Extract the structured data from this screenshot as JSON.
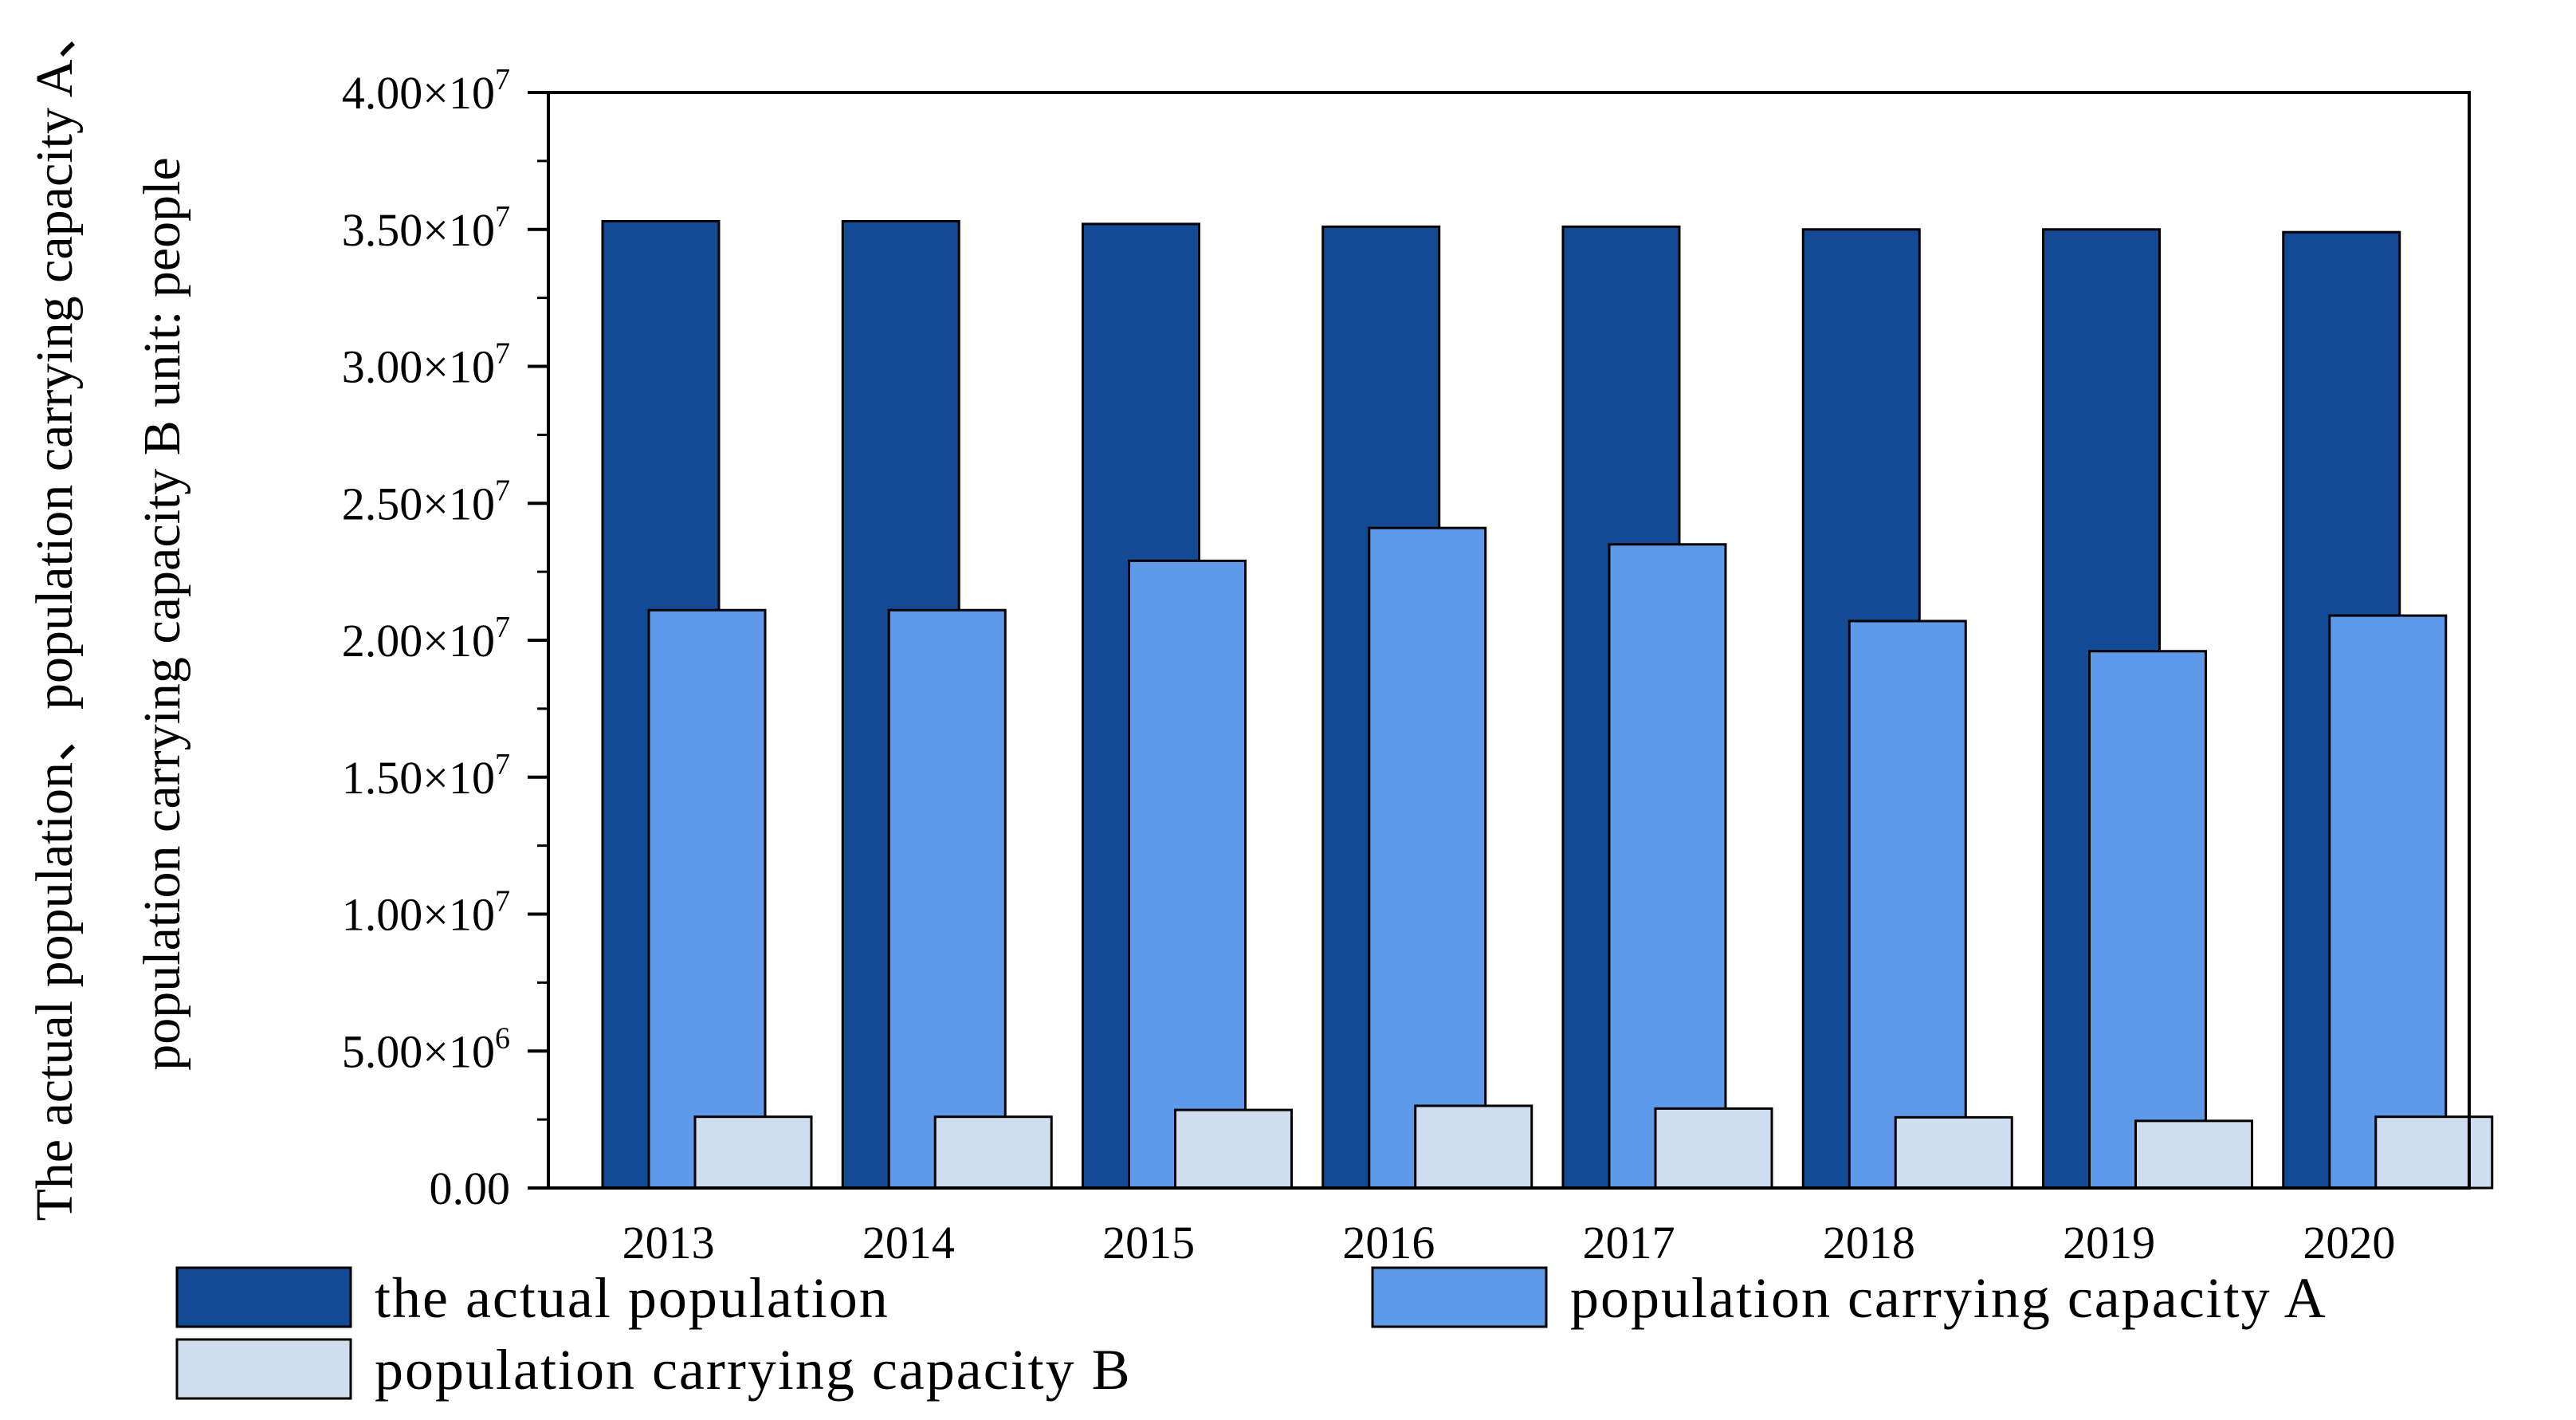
{
  "chart_data": {
    "type": "bar",
    "categories": [
      "2013",
      "2014",
      "2015",
      "2016",
      "2017",
      "2018",
      "2019",
      "2020"
    ],
    "series": [
      {
        "name": "the actual population",
        "color": "#134a96",
        "values": [
          35300000,
          35300000,
          35200000,
          35100000,
          35100000,
          35000000,
          35000000,
          34900000
        ]
      },
      {
        "name": "population carrying capacity A",
        "color": "#5f99ea",
        "values": [
          21100000,
          21100000,
          22900000,
          24100000,
          23500000,
          20700000,
          19600000,
          20900000
        ]
      },
      {
        "name": "population carrying capacity B",
        "color": "#d0ddee",
        "values": [
          2600000,
          2600000,
          2850000,
          3000000,
          2900000,
          2580000,
          2450000,
          2600000
        ]
      }
    ],
    "ylim": [
      0,
      40000000
    ],
    "y_ticks": [
      {
        "value": 0,
        "mantissa": "0.00",
        "exp": ""
      },
      {
        "value": 5000000,
        "mantissa": "5.00×10",
        "exp": "6"
      },
      {
        "value": 10000000,
        "mantissa": "1.00×10",
        "exp": "7"
      },
      {
        "value": 15000000,
        "mantissa": "1.50×10",
        "exp": "7"
      },
      {
        "value": 20000000,
        "mantissa": "2.00×10",
        "exp": "7"
      },
      {
        "value": 25000000,
        "mantissa": "2.50×10",
        "exp": "7"
      },
      {
        "value": 30000000,
        "mantissa": "3.00×10",
        "exp": "7"
      },
      {
        "value": 35000000,
        "mantissa": "3.50×10",
        "exp": "7"
      },
      {
        "value": 40000000,
        "mantissa": "4.00×10",
        "exp": "7"
      }
    ],
    "ylabel_lines": [
      "The actual population、population carrying capacity A、",
      "population carrying capacity B unit: people"
    ],
    "xlabel": "",
    "title": "",
    "grid": false,
    "legend_position": "bottom"
  }
}
